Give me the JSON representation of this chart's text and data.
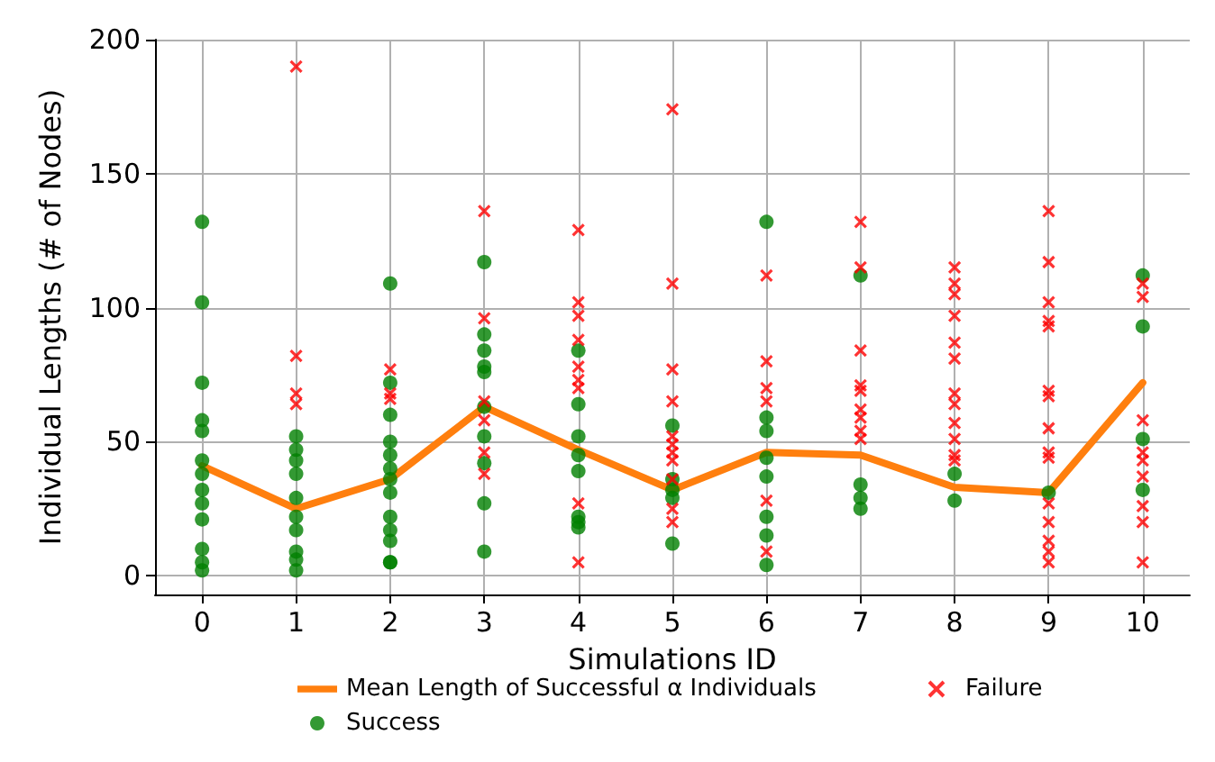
{
  "chart_data": {
    "type": "scatter",
    "xlabel": "Simulations ID",
    "ylabel": "Individual Lengths (# of Nodes)",
    "xlim": [
      -0.5,
      10.5
    ],
    "xticks": [
      0,
      1,
      2,
      3,
      4,
      5,
      6,
      7,
      8,
      9,
      10
    ],
    "ylim": [
      -7,
      200
    ],
    "yticks": [
      0,
      50,
      100,
      150,
      200
    ],
    "grid": true,
    "legend": "bottom",
    "series": [
      {
        "name": "Mean Length of Successful α Individuals",
        "type": "line",
        "marker": "none",
        "color": "#ff7f0e",
        "x": [
          0,
          1,
          2,
          3,
          4,
          5,
          6,
          7,
          8,
          9,
          10
        ],
        "values": [
          41,
          25,
          36,
          63,
          47,
          32,
          46,
          45,
          33,
          31,
          72
        ]
      },
      {
        "name": "Success",
        "marker": "circle",
        "color": "#008000",
        "x": [
          0,
          0,
          0,
          0,
          0,
          0,
          0,
          0,
          0,
          0,
          0,
          0,
          0,
          1,
          1,
          1,
          1,
          1,
          1,
          1,
          1,
          1,
          1,
          2,
          2,
          2,
          2,
          2,
          2,
          2,
          2,
          2,
          2,
          2,
          2,
          2,
          3,
          3,
          3,
          3,
          3,
          3,
          3,
          3,
          3,
          3,
          4,
          4,
          4,
          4,
          4,
          4,
          4,
          4,
          5,
          5,
          5,
          5,
          5,
          6,
          6,
          6,
          6,
          6,
          6,
          6,
          6,
          7,
          7,
          7,
          7,
          8,
          8,
          9,
          10,
          10,
          10,
          10
        ],
        "values": [
          132,
          102,
          72,
          58,
          54,
          43,
          38,
          32,
          27,
          21,
          10,
          5,
          2,
          52,
          47,
          43,
          38,
          29,
          22,
          17,
          9,
          6,
          2,
          109,
          72,
          60,
          50,
          45,
          40,
          36,
          31,
          22,
          17,
          13,
          5,
          5,
          117,
          90,
          84,
          78,
          76,
          63,
          52,
          42,
          27,
          9,
          84,
          64,
          52,
          45,
          39,
          22,
          18,
          20,
          56,
          36,
          32,
          29,
          12,
          132,
          59,
          54,
          44,
          37,
          22,
          15,
          4,
          112,
          34,
          29,
          25,
          38,
          28,
          31,
          112,
          93,
          51,
          32
        ]
      },
      {
        "name": "Failure",
        "marker": "cross",
        "color": "#ff0000",
        "x": [
          1,
          1,
          1,
          1,
          2,
          2,
          2,
          3,
          3,
          3,
          3,
          3,
          3,
          4,
          4,
          4,
          4,
          4,
          4,
          4,
          4,
          4,
          5,
          5,
          5,
          5,
          5,
          5,
          5,
          5,
          5,
          5,
          5,
          6,
          6,
          6,
          6,
          6,
          6,
          7,
          7,
          7,
          7,
          7,
          7,
          7,
          7,
          7,
          8,
          8,
          8,
          8,
          8,
          8,
          8,
          8,
          8,
          8,
          8,
          8,
          9,
          9,
          9,
          9,
          9,
          9,
          9,
          9,
          9,
          9,
          9,
          9,
          9,
          9,
          9,
          10,
          10,
          10,
          10,
          10,
          10,
          10,
          10,
          10
        ],
        "values": [
          190,
          82,
          68,
          64,
          77,
          68,
          66,
          136,
          96,
          65,
          58,
          46,
          38,
          129,
          102,
          97,
          88,
          78,
          73,
          70,
          27,
          5,
          174,
          109,
          77,
          65,
          52,
          49,
          46,
          43,
          25,
          20,
          36,
          112,
          80,
          70,
          65,
          28,
          9,
          132,
          115,
          84,
          71,
          69,
          62,
          59,
          54,
          51,
          115,
          109,
          105,
          97,
          87,
          81,
          68,
          64,
          57,
          51,
          45,
          43,
          136,
          117,
          102,
          95,
          93,
          69,
          67,
          55,
          46,
          44,
          27,
          20,
          13,
          9,
          5,
          109,
          104,
          58,
          46,
          43,
          37,
          26,
          20,
          5
        ]
      }
    ]
  }
}
